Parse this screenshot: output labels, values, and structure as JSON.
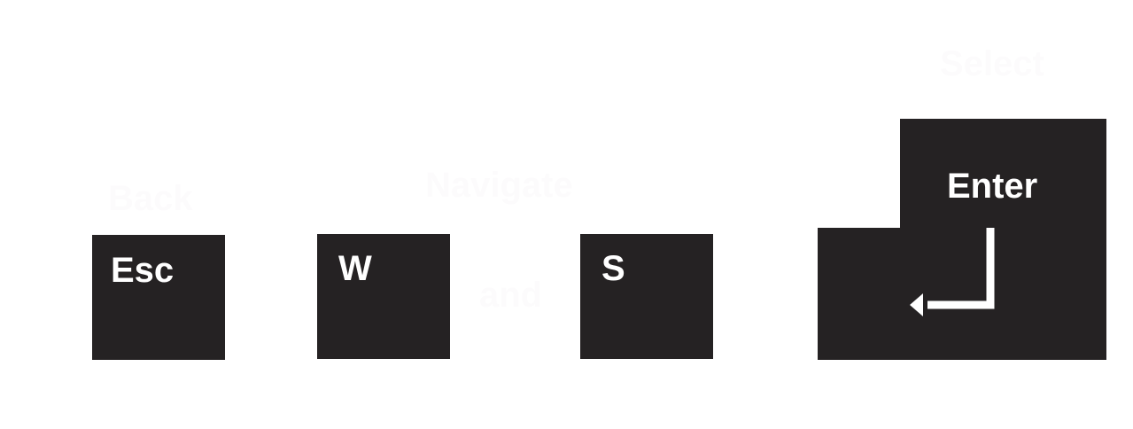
{
  "captions": {
    "back": "Back",
    "navigate": "Navigate",
    "and": "and",
    "select": "Select"
  },
  "keys": {
    "esc": "Esc",
    "w": "W",
    "s": "S",
    "enter": "Enter"
  },
  "icons": {
    "enter": "return-arrow-icon"
  },
  "colors": {
    "key": "#252223",
    "key_text": "#ffffff",
    "caption": "#fcfbfc",
    "background": "#ffffff"
  }
}
